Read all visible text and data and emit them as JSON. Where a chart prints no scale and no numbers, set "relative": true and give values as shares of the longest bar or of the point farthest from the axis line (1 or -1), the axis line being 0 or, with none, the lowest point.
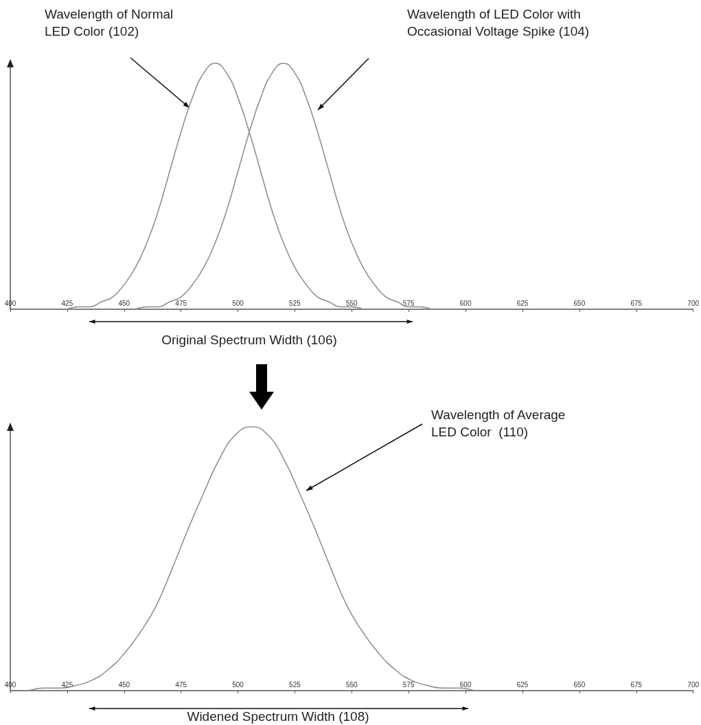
{
  "chart_data": [
    {
      "type": "line",
      "relative": true,
      "xlim": [
        400,
        700
      ],
      "xticks": [
        400,
        425,
        450,
        475,
        500,
        525,
        550,
        575,
        600,
        625,
        650,
        675,
        700
      ],
      "tick_labels": "x",
      "series": [
        {
          "color": "#8a8a8a",
          "x": [
            425,
            430,
            435,
            440,
            445,
            450,
            455,
            460,
            465,
            470,
            475,
            480,
            485,
            490,
            495,
            500,
            505,
            510,
            515,
            520,
            525,
            530,
            535,
            540,
            545,
            550,
            555
          ],
          "values": [
            0,
            0.01,
            0.01,
            0.03,
            0.05,
            0.1,
            0.17,
            0.27,
            0.4,
            0.56,
            0.72,
            0.86,
            0.96,
            1,
            0.96,
            0.86,
            0.72,
            0.56,
            0.4,
            0.27,
            0.17,
            0.1,
            0.05,
            0.03,
            0.01,
            0.01,
            0
          ]
        },
        {
          "color": "#8a8a8a",
          "x": [
            455,
            460,
            465,
            470,
            475,
            480,
            485,
            490,
            495,
            500,
            505,
            510,
            515,
            520,
            525,
            530,
            535,
            540,
            545,
            550,
            555,
            560,
            565,
            570,
            575,
            580,
            585
          ],
          "values": [
            0,
            0.01,
            0.01,
            0.03,
            0.05,
            0.1,
            0.17,
            0.27,
            0.4,
            0.56,
            0.72,
            0.86,
            0.96,
            1,
            0.96,
            0.86,
            0.72,
            0.56,
            0.4,
            0.27,
            0.17,
            0.1,
            0.05,
            0.03,
            0.01,
            0.01,
            0
          ]
        }
      ],
      "annotations": [
        "Wavelength of Normal\nLED Color (102)",
        "Wavelength of LED Color with\nOccasional Voltage Spike (104)",
        "Original Spectrum Width (106)"
      ]
    },
    {
      "type": "line",
      "relative": true,
      "xlim": [
        400,
        700
      ],
      "xticks": [
        400,
        425,
        450,
        475,
        500,
        525,
        550,
        575,
        600,
        625,
        650,
        675,
        700
      ],
      "tick_labels": "x",
      "series": [
        {
          "color": "#8a8a8a",
          "x": [
            408,
            415,
            422,
            429,
            436,
            443,
            450,
            457,
            464,
            471,
            478,
            485,
            492,
            499,
            506,
            513,
            520,
            527,
            534,
            541,
            548,
            555,
            562,
            569,
            576,
            583,
            590,
            597,
            604
          ],
          "values": [
            0,
            0.01,
            0.01,
            0.02,
            0.04,
            0.08,
            0.14,
            0.22,
            0.32,
            0.46,
            0.61,
            0.75,
            0.88,
            0.97,
            1,
            0.97,
            0.88,
            0.75,
            0.61,
            0.46,
            0.32,
            0.22,
            0.14,
            0.08,
            0.04,
            0.02,
            0.01,
            0.01,
            0
          ]
        }
      ],
      "annotations": [
        "Wavelength of Average\nLED Color  (110)",
        "Widened Spectrum Width (108)"
      ]
    }
  ]
}
